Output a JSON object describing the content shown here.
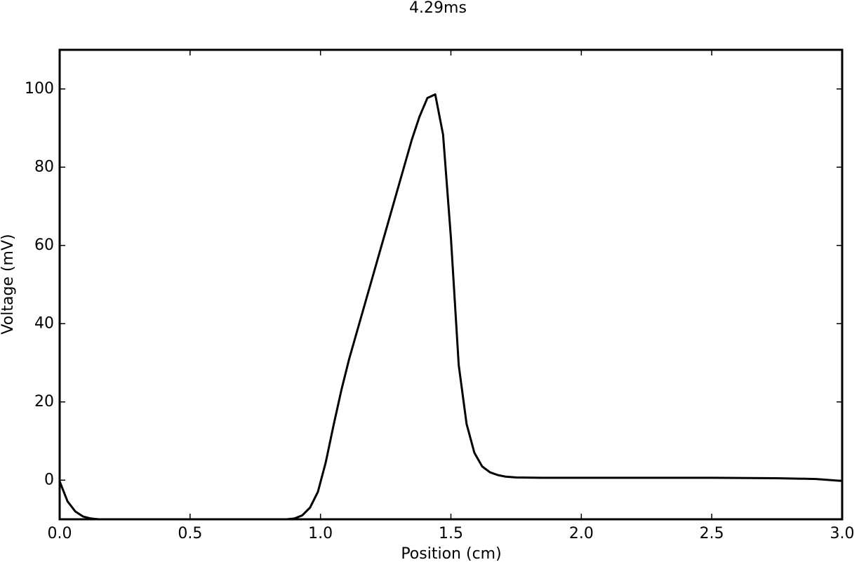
{
  "chart_data": {
    "type": "line",
    "title": "4.29ms",
    "x_label": "Position (cm)",
    "y_label": "Voltage (mV)",
    "series": [
      {
        "color": "#000000",
        "x": [
          0,
          0.03,
          0.06,
          0.09,
          0.12,
          0.15,
          0.3,
          0.5,
          0.7,
          0.87,
          0.9,
          0.93,
          0.96,
          0.99,
          1.02,
          1.05,
          1.08,
          1.11,
          1.14,
          1.17,
          1.2,
          1.23,
          1.26,
          1.29,
          1.32,
          1.35,
          1.38,
          1.41,
          1.44,
          1.47,
          1.5,
          1.53,
          1.56,
          1.59,
          1.62,
          1.65,
          1.68,
          1.71,
          1.75,
          1.85,
          2.0,
          2.5,
          2.75,
          2.9,
          3.0
        ],
        "values": [
          -0.3,
          -5.4,
          -8,
          -9.3,
          -9.8,
          -10,
          -10,
          -10,
          -10,
          -10,
          -9.8,
          -9,
          -7,
          -3,
          4.5,
          14,
          23,
          31,
          38,
          45,
          52,
          59,
          66,
          73,
          80,
          87,
          93,
          97.7,
          98.6,
          88.3,
          62,
          29.4,
          14.4,
          7,
          3.5,
          2,
          1.3,
          0.9,
          0.7,
          0.6,
          0.6,
          0.6,
          0.5,
          0.3,
          -0.2
        ]
      }
    ],
    "xlim": [
      0,
      3
    ],
    "xticks": [
      {
        "value": 0,
        "label": "0.0"
      },
      {
        "value": 0.5,
        "label": "0.5"
      },
      {
        "value": 1,
        "label": "1.0"
      },
      {
        "value": 1.5,
        "label": "1.5"
      },
      {
        "value": 2,
        "label": "2.0"
      },
      {
        "value": 2.5,
        "label": "2.5"
      },
      {
        "value": 3,
        "label": "3.0"
      }
    ],
    "ylim": [
      -10,
      110
    ],
    "yticks": [
      0,
      20,
      40,
      60,
      80,
      100
    ]
  }
}
